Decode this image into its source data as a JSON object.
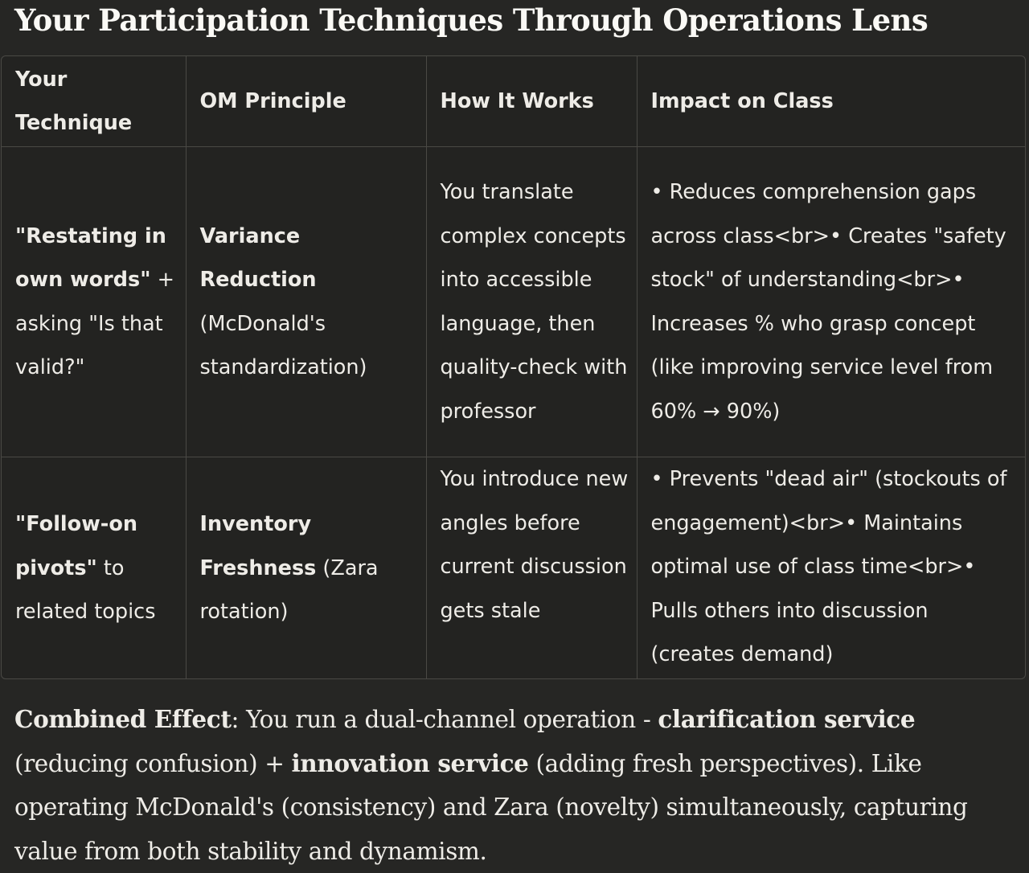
{
  "title": "Your Participation Techniques Through Operations Lens",
  "table": {
    "headers": [
      "Your Technique",
      "OM Principle",
      "How It Works",
      "Impact on Class"
    ],
    "rows": [
      {
        "technique_bold": "\"Restating in own words\"",
        "technique_rest": " + asking \"Is that valid?\"",
        "principle_bold": "Variance Reduction",
        "principle_rest": " (McDonald's standardization)",
        "how": "You translate complex concepts into accessible language, then quality-check with professor",
        "impact": "• Reduces comprehension gaps across class<br>• Creates \"safety stock\" of understanding<br>• Increases % who grasp concept (like improving service level from 60% → 90%)"
      },
      {
        "technique_bold": "\"Follow-on pivots\"",
        "technique_rest": " to related topics",
        "principle_bold": "Inventory Freshness",
        "principle_rest": " (Zara rotation)",
        "how": "You introduce new angles before current discussion gets stale",
        "impact": "• Prevents \"dead air\" (stockouts of engagement)<br>• Maintains optimal use of class time<br>• Pulls others into discussion (creates demand)"
      }
    ]
  },
  "summary": {
    "label": "Combined Effect",
    "text1": ": You run a dual-channel operation - ",
    "bold1": "clarification service",
    "text2": " (reducing confusion) + ",
    "bold2": "innovation service",
    "text3": " (adding fresh perspectives). Like operating McDonald's (consistency) and Zara (novelty) simultaneously, capturing value from both stability and dynamism."
  }
}
